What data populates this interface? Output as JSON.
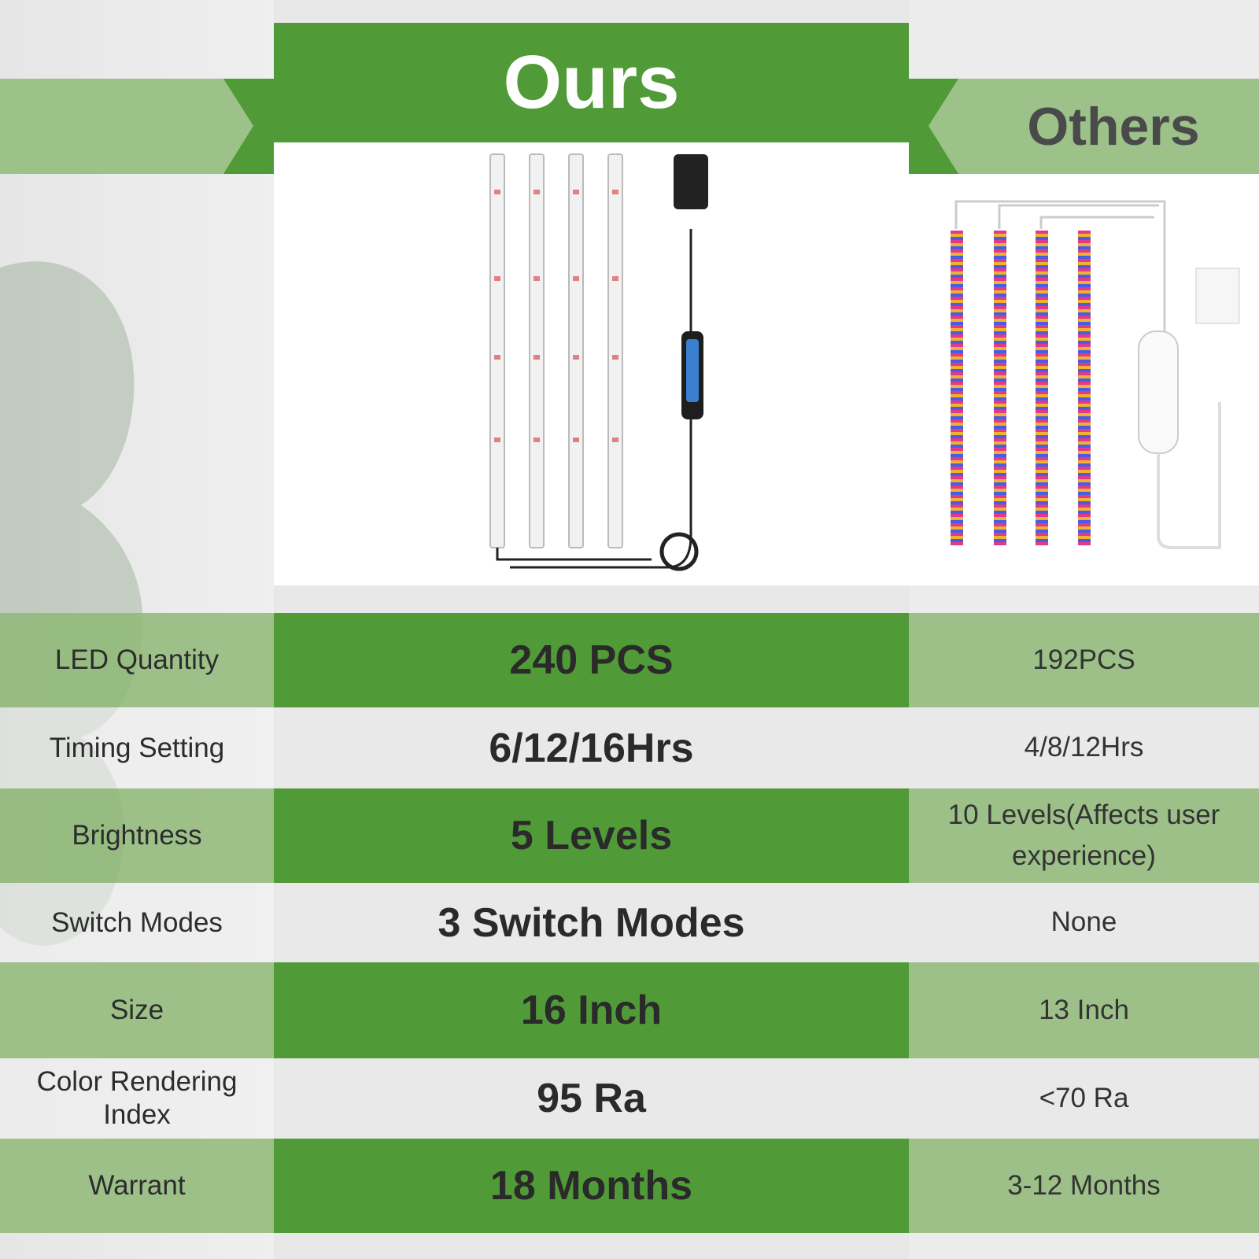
{
  "colors": {
    "dark_green": "#509b37",
    "light_green": "#9cc189",
    "gray": "#e9e9e9"
  },
  "header": {
    "ours": "Ours",
    "others": "Others"
  },
  "rows": [
    {
      "label": "LED Quantity",
      "ours": "240 PCS",
      "others": "192PCS"
    },
    {
      "label": "Timing Setting",
      "ours": "6/12/16Hrs",
      "others": "4/8/12Hrs"
    },
    {
      "label": "Brightness",
      "ours": "5 Levels",
      "others": "10 Levels(Affects user experience)"
    },
    {
      "label": "Switch Modes",
      "ours": "3 Switch Modes",
      "others": "None"
    },
    {
      "label": "Size",
      "ours": "16 Inch",
      "others": "13 Inch"
    },
    {
      "label": "Color Rendering Index",
      "ours": "95 Ra",
      "others": "<70 Ra"
    },
    {
      "label": "Warrant",
      "ours": "18 Months",
      "others": "3-12 Months"
    }
  ]
}
